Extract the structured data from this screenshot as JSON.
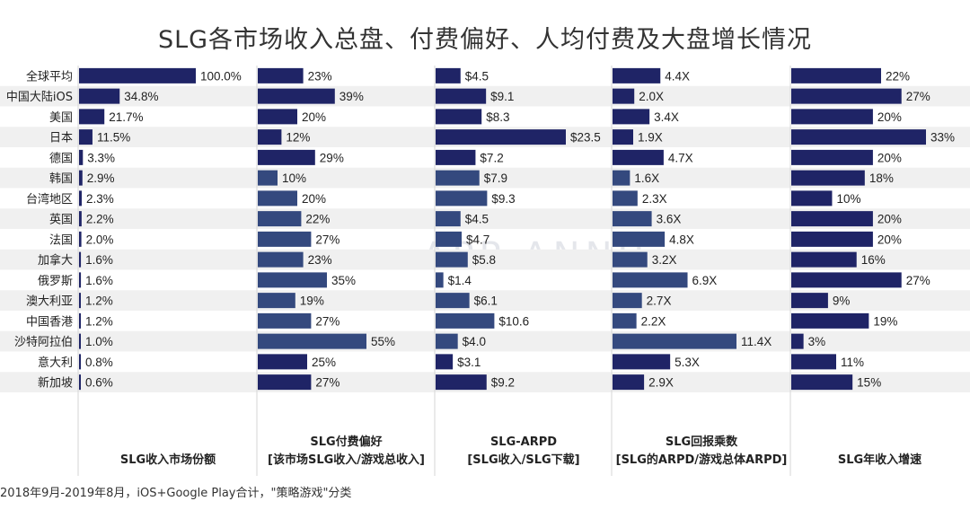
{
  "title": "SLG各市场收入总盘、付费偏好、人均付费及大盘增长情况",
  "footnote": "2018年9月-2019年8月，iOS+Google Play合计，\"策略游戏\"分类",
  "watermark": "APP ANNIE",
  "colors": {
    "dark": "#1f2466",
    "light": "#34497e",
    "row_band": "#f0f0f0",
    "divider": "#d6d6d6"
  },
  "chart_data": {
    "type": "bar",
    "categories": [
      "全球平均",
      "中国大陆iOS",
      "美国",
      "日本",
      "德国",
      "韩国",
      "台湾地区",
      "英国",
      "法国",
      "加拿大",
      "俄罗斯",
      "澳大利亚",
      "中国香港",
      "沙特阿拉伯",
      "意大利",
      "新加坡"
    ],
    "series": [
      {
        "name": "SLG收入市场份额",
        "header_lines": [
          "SLG收入市场份额"
        ],
        "values": [
          100.0,
          34.8,
          21.7,
          11.5,
          3.3,
          2.9,
          2.3,
          2.2,
          2.0,
          1.6,
          1.6,
          1.2,
          1.2,
          1.0,
          0.8,
          0.6
        ],
        "labels": [
          "100.0%",
          "34.8%",
          "21.7%",
          "11.5%",
          "3.3%",
          "2.9%",
          "2.3%",
          "2.2%",
          "2.0%",
          "1.6%",
          "1.6%",
          "1.2%",
          "1.2%",
          "1.0%",
          "0.8%",
          "0.6%"
        ],
        "shade": [
          "dark",
          "dark",
          "dark",
          "dark",
          "dark",
          "dark",
          "dark",
          "dark",
          "dark",
          "dark",
          "dark",
          "dark",
          "dark",
          "dark",
          "dark",
          "dark"
        ]
      },
      {
        "name": "SLG付费偏好",
        "header_lines": [
          "SLG付费偏好",
          "[该市场SLG收入/游戏总收入]"
        ],
        "values": [
          23,
          39,
          20,
          12,
          29,
          10,
          20,
          22,
          27,
          23,
          35,
          19,
          27,
          55,
          25,
          27
        ],
        "labels": [
          "23%",
          "39%",
          "20%",
          "12%",
          "29%",
          "10%",
          "20%",
          "22%",
          "27%",
          "23%",
          "35%",
          "19%",
          "27%",
          "55%",
          "25%",
          "27%"
        ],
        "shade": [
          "dark",
          "dark",
          "dark",
          "dark",
          "dark",
          "light",
          "light",
          "light",
          "light",
          "light",
          "light",
          "light",
          "light",
          "light",
          "dark",
          "dark"
        ]
      },
      {
        "name": "SLG-ARPD",
        "header_lines": [
          "SLG-ARPD",
          "[SLG收入/SLG下载]"
        ],
        "values": [
          4.5,
          9.1,
          8.3,
          23.5,
          7.2,
          7.9,
          9.3,
          4.5,
          4.7,
          5.8,
          1.4,
          6.1,
          10.6,
          4.0,
          3.1,
          9.2
        ],
        "labels": [
          "$4.5",
          "$9.1",
          "$8.3",
          "$23.5",
          "$7.2",
          "$7.9",
          "$9.3",
          "$4.5",
          "$4.7",
          "$5.8",
          "$1.4",
          "$6.1",
          "$10.6",
          "$4.0",
          "$3.1",
          "$9.2"
        ],
        "shade": [
          "dark",
          "dark",
          "dark",
          "dark",
          "dark",
          "light",
          "light",
          "light",
          "light",
          "light",
          "light",
          "light",
          "light",
          "light",
          "dark",
          "dark"
        ]
      },
      {
        "name": "SLG回报乘数",
        "header_lines": [
          "SLG回报乘数",
          "[SLG的ARPD/游戏总体ARPD]"
        ],
        "values": [
          4.4,
          2.0,
          3.4,
          1.9,
          4.7,
          1.6,
          2.3,
          3.6,
          4.8,
          3.2,
          6.9,
          2.7,
          2.2,
          11.4,
          5.3,
          2.9
        ],
        "labels": [
          "4.4X",
          "2.0X",
          "3.4X",
          "1.9X",
          "4.7X",
          "1.6X",
          "2.3X",
          "3.6X",
          "4.8X",
          "3.2X",
          "6.9X",
          "2.7X",
          "2.2X",
          "11.4X",
          "5.3X",
          "2.9X"
        ],
        "shade": [
          "dark",
          "dark",
          "dark",
          "dark",
          "dark",
          "light",
          "light",
          "light",
          "light",
          "light",
          "light",
          "light",
          "light",
          "light",
          "dark",
          "dark"
        ]
      },
      {
        "name": "SLG年收入增速",
        "header_lines": [
          "SLG年收入增速"
        ],
        "values": [
          22,
          27,
          20,
          33,
          20,
          18,
          10,
          20,
          20,
          16,
          27,
          9,
          19,
          3,
          11,
          15
        ],
        "labels": [
          "22%",
          "27%",
          "20%",
          "33%",
          "20%",
          "18%",
          "10%",
          "20%",
          "20%",
          "16%",
          "27%",
          "9%",
          "19%",
          "3%",
          "11%",
          "15%"
        ],
        "shade": [
          "dark",
          "dark",
          "dark",
          "dark",
          "dark",
          "dark",
          "dark",
          "dark",
          "dark",
          "dark",
          "dark",
          "dark",
          "dark",
          "dark",
          "dark",
          "dark"
        ]
      }
    ],
    "grid": false,
    "legend": "none"
  }
}
